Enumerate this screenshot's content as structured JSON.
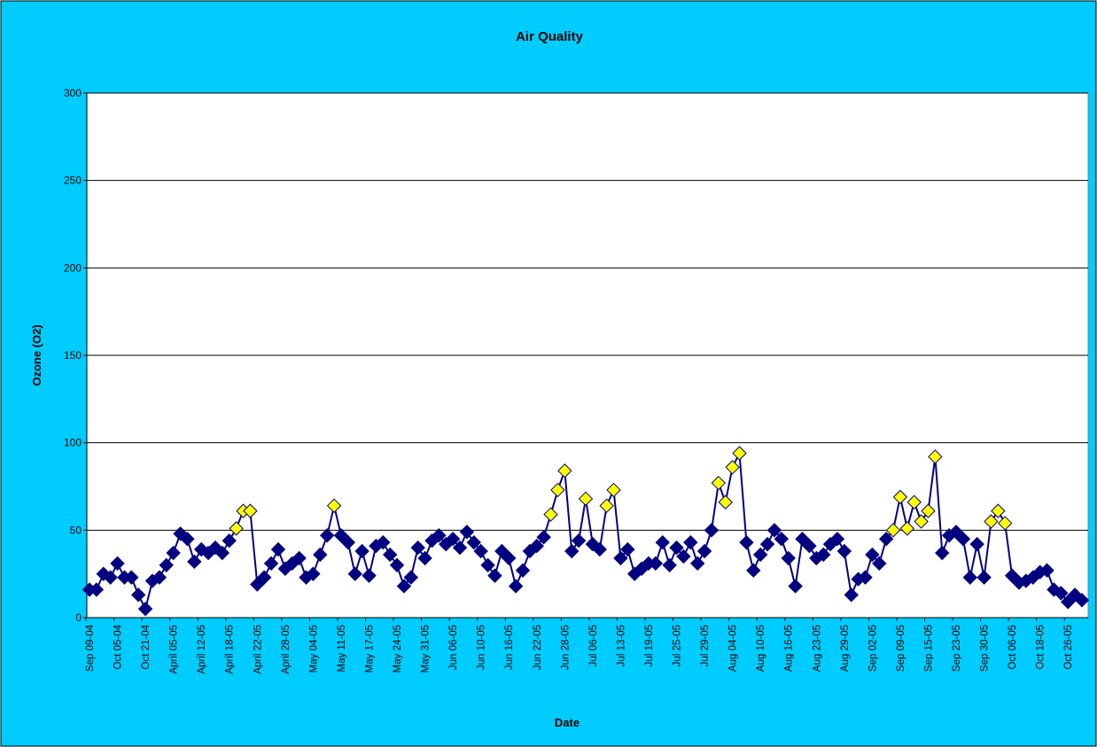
{
  "chart_data": {
    "type": "line",
    "title": "Air Quality",
    "x_label": "Date",
    "y_label": "Ozone (O2)",
    "categories": [
      "Sep 09-04",
      null,
      null,
      null,
      "Oct 05-04",
      null,
      null,
      null,
      "Oct 21-04",
      null,
      null,
      null,
      "April 05-05",
      null,
      null,
      null,
      "April 12-05",
      null,
      null,
      null,
      "April 18-05",
      null,
      null,
      null,
      "April 22-05",
      null,
      null,
      null,
      "April 28-05",
      null,
      null,
      null,
      "May 04-05",
      null,
      null,
      null,
      "May 11-05",
      null,
      null,
      null,
      "May 17-05",
      null,
      null,
      null,
      "May 24-05",
      null,
      null,
      null,
      "May 31-05",
      null,
      null,
      null,
      "Jun 06-05",
      null,
      null,
      null,
      "Jun 10-05",
      null,
      null,
      null,
      "Jun 16-05",
      null,
      null,
      null,
      "Jun 22-05",
      null,
      null,
      null,
      "Jun 28-05",
      null,
      null,
      null,
      "Jul 06-05",
      null,
      null,
      null,
      "Jul 13-05",
      null,
      null,
      null,
      "Jul 19-05",
      null,
      null,
      null,
      "Jul 25-05",
      null,
      null,
      null,
      "Jul 29-05",
      null,
      null,
      null,
      "Aug 04-05",
      null,
      null,
      null,
      "Aug 10-05",
      null,
      null,
      null,
      "Aug 16-05",
      null,
      null,
      null,
      "Aug 23-05",
      null,
      null,
      null,
      "Aug 29-05",
      null,
      null,
      null,
      "Sep 02-05",
      null,
      null,
      null,
      "Sep 09-05",
      null,
      null,
      null,
      "Sep 15-05",
      null,
      null,
      null,
      "Sep 23-05",
      null,
      null,
      null,
      "Sep 30-05",
      null,
      null,
      null,
      "Oct 06-05",
      null,
      null,
      null,
      "Oct 18-05",
      null,
      null,
      null,
      "Oct 26-05",
      null,
      null
    ],
    "series": [
      {
        "color": "#000080",
        "values": [
          16,
          16,
          25,
          23,
          31,
          23,
          23,
          13,
          5,
          21,
          23,
          30,
          37,
          48,
          45,
          32,
          39,
          37,
          40,
          37,
          44,
          51,
          61,
          61,
          19,
          23,
          31,
          39,
          28,
          31,
          34,
          23,
          25,
          36,
          47,
          64,
          47,
          43,
          25,
          38,
          24,
          41,
          43,
          36,
          30,
          18,
          23,
          40,
          34,
          44,
          47,
          42,
          45,
          40,
          49,
          43,
          38,
          30,
          24,
          38,
          34,
          18,
          27,
          38,
          41,
          46,
          59,
          73,
          84,
          38,
          44,
          68,
          42,
          39,
          64,
          73,
          34,
          39,
          25,
          28,
          31,
          31,
          43,
          30,
          40,
          35,
          43,
          31,
          38,
          50,
          77,
          66,
          86,
          94,
          43,
          27,
          36,
          42,
          50,
          45,
          34,
          18,
          45,
          41,
          34,
          36,
          42,
          45,
          38,
          13,
          22,
          23,
          36,
          31,
          45,
          50,
          69,
          51,
          66,
          55,
          61,
          92,
          37,
          47,
          49,
          45,
          23,
          42,
          23,
          55,
          61,
          54,
          24,
          20,
          21,
          23,
          26,
          27,
          16,
          14,
          9,
          13,
          10
        ],
        "marker_colors": [
          "#000080",
          "#000080",
          "#000080",
          "#000080",
          "#000080",
          "#000080",
          "#000080",
          "#000080",
          "#000080",
          "#000080",
          "#000080",
          "#000080",
          "#000080",
          "#000080",
          "#000080",
          "#000080",
          "#000080",
          "#000080",
          "#000080",
          "#000080",
          "#000080",
          "#ffff00",
          "#ffff00",
          "#ffff00",
          "#000080",
          "#000080",
          "#000080",
          "#000080",
          "#000080",
          "#000080",
          "#000080",
          "#000080",
          "#000080",
          "#000080",
          "#000080",
          "#ffff00",
          "#000080",
          "#000080",
          "#000080",
          "#000080",
          "#000080",
          "#000080",
          "#000080",
          "#000080",
          "#000080",
          "#000080",
          "#000080",
          "#000080",
          "#000080",
          "#000080",
          "#000080",
          "#000080",
          "#000080",
          "#000080",
          "#000080",
          "#000080",
          "#000080",
          "#000080",
          "#000080",
          "#000080",
          "#000080",
          "#000080",
          "#000080",
          "#000080",
          "#000080",
          "#000080",
          "#ffff00",
          "#ffff00",
          "#ffff00",
          "#000080",
          "#000080",
          "#ffff00",
          "#000080",
          "#000080",
          "#ffff00",
          "#ffff00",
          "#000080",
          "#000080",
          "#000080",
          "#000080",
          "#000080",
          "#000080",
          "#000080",
          "#000080",
          "#000080",
          "#000080",
          "#000080",
          "#000080",
          "#000080",
          "#000080",
          "#ffff00",
          "#ffff00",
          "#ffff00",
          "#ffff00",
          "#000080",
          "#000080",
          "#000080",
          "#000080",
          "#000080",
          "#000080",
          "#000080",
          "#000080",
          "#000080",
          "#000080",
          "#000080",
          "#000080",
          "#000080",
          "#000080",
          "#000080",
          "#000080",
          "#000080",
          "#000080",
          "#000080",
          "#000080",
          "#000080",
          "#ffff00",
          "#ffff00",
          "#ffff00",
          "#ffff00",
          "#ffff00",
          "#ffff00",
          "#ffff00",
          "#000080",
          "#000080",
          "#000080",
          "#000080",
          "#000080",
          "#000080",
          "#000080",
          "#ffff00",
          "#ffff00",
          "#ffff00",
          "#000080",
          "#000080",
          "#000080",
          "#000080",
          "#000080",
          "#000080",
          "#000080",
          "#000080",
          "#000080",
          "#000080",
          "#000080"
        ]
      }
    ],
    "ylim": [
      0,
      300
    ],
    "yticks": [
      0,
      50,
      100,
      150,
      200,
      250,
      300
    ],
    "grid": true,
    "background": "#00ccff",
    "plot_background": "#ffffff"
  }
}
